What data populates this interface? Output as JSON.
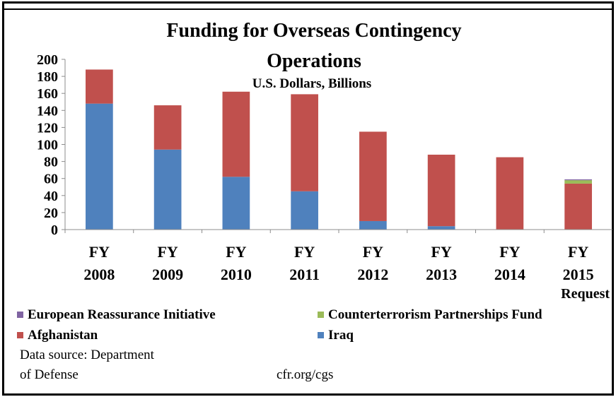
{
  "chart_data": {
    "type": "bar",
    "stacked": true,
    "title": "Funding for Overseas Contingency",
    "title_line2": "Operations",
    "subtitle": "U.S. Dollars, Billions",
    "categories": [
      [
        "FY",
        "2008"
      ],
      [
        "FY",
        "2009"
      ],
      [
        "FY",
        "2010"
      ],
      [
        "FY",
        "2011"
      ],
      [
        "FY",
        "2012"
      ],
      [
        "FY",
        "2013"
      ],
      [
        "FY",
        "2014"
      ],
      [
        "FY",
        "2015",
        "Request"
      ]
    ],
    "series": [
      {
        "name": "Iraq",
        "color": "#4F81BD",
        "values": [
          148,
          94,
          62,
          45,
          10,
          4,
          0,
          0
        ]
      },
      {
        "name": "Afghanistan",
        "color": "#C0504D",
        "values": [
          40,
          52,
          100,
          114,
          105,
          84,
          85,
          54
        ]
      },
      {
        "name": "Counterterrorism Partnerships Fund",
        "color": "#9BBB59",
        "values": [
          0,
          0,
          0,
          0,
          0,
          0,
          0,
          4
        ]
      },
      {
        "name": "European Reassurance Initiative",
        "color": "#8064A2",
        "values": [
          0,
          0,
          0,
          0,
          0,
          0,
          0,
          1
        ]
      }
    ],
    "yticks": [
      0,
      20,
      40,
      60,
      80,
      100,
      120,
      140,
      160,
      180,
      200
    ],
    "ylim": [
      0,
      200
    ],
    "grid": false,
    "legend": [
      "European Reassurance Initiative",
      "Counterterrorism Partnerships Fund",
      "Afghanistan",
      "Iraq"
    ],
    "legend_position": "bottom"
  },
  "source_line1": "Data source: Department",
  "source_line2": "of Defense",
  "credit": "cfr.org/cgs"
}
